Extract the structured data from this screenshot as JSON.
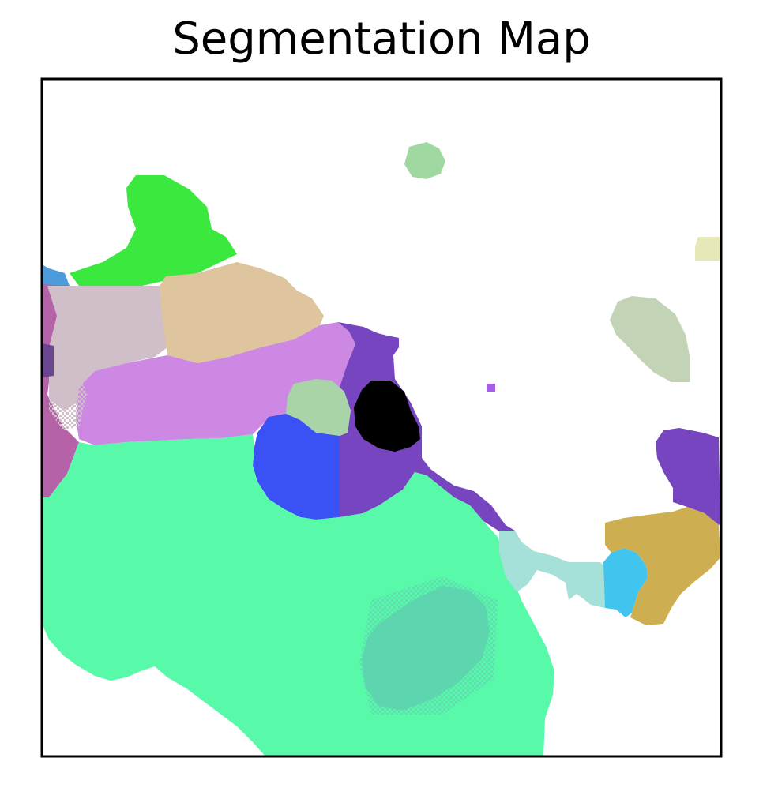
{
  "chart_data": {
    "type": "heatmap",
    "title": "Segmentation Map",
    "xlabel": "",
    "ylabel": "",
    "xticks": [],
    "yticks": [],
    "grid": false,
    "legend": "none",
    "background_color": "#ffffff",
    "segments": [
      {
        "id": "bright-green",
        "color": "#3ae83e"
      },
      {
        "id": "tan",
        "color": "#dec59e"
      },
      {
        "id": "mauve",
        "color": "#d0bfc9"
      },
      {
        "id": "magenta-left",
        "color": "#b562a9"
      },
      {
        "id": "blue-left-small",
        "color": "#4b9bdd"
      },
      {
        "id": "dark-purple-left-small",
        "color": "#6a4592"
      },
      {
        "id": "lilac",
        "color": "#cd88e4"
      },
      {
        "id": "purple-center",
        "color": "#7745c0"
      },
      {
        "id": "black",
        "color": "#000000"
      },
      {
        "id": "sage-center",
        "color": "#a9d4a8"
      },
      {
        "id": "blue",
        "color": "#3a51f5"
      },
      {
        "id": "mint-green",
        "color": "#58f9a9"
      },
      {
        "id": "teal-blob",
        "color": "#5dd5af"
      },
      {
        "id": "pale-cyan",
        "color": "#a6e1d9"
      },
      {
        "id": "sky-blue",
        "color": "#41c5ee"
      },
      {
        "id": "gold",
        "color": "#cdaf52"
      },
      {
        "id": "purple-right",
        "color": "#7745c0"
      },
      {
        "id": "sage-right",
        "color": "#c3d4b6"
      },
      {
        "id": "pale-green-top",
        "color": "#a0d8a1"
      },
      {
        "id": "pale-yellow",
        "color": "#e6e8b8"
      },
      {
        "id": "purple-dot",
        "color": "#a45ee8"
      }
    ]
  }
}
